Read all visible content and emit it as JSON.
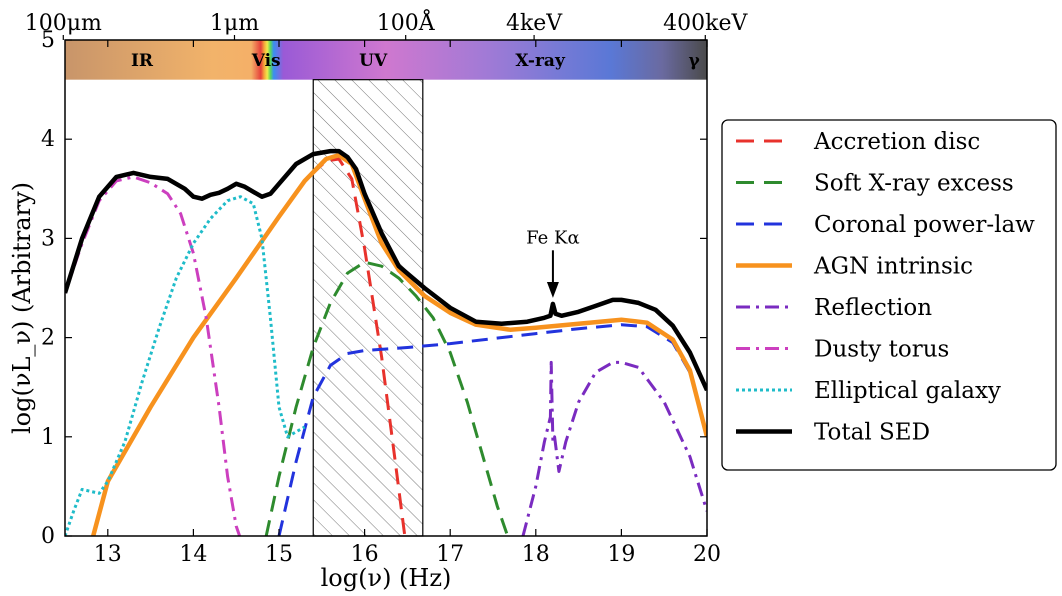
{
  "chart_data": {
    "type": "line",
    "xlabel": "log(ν) (Hz)",
    "ylabel": "log(νL_ν) (Arbitrary)",
    "xlim": [
      12.5,
      20
    ],
    "ylim": [
      0,
      5
    ],
    "xticks": [
      "13",
      "14",
      "15",
      "16",
      "17",
      "18",
      "19",
      "20"
    ],
    "yticks": [
      "0",
      "1",
      "2",
      "3",
      "4",
      "5"
    ],
    "top_axis": [
      {
        "label": "100μm",
        "x": 12.48
      },
      {
        "label": "1μm",
        "x": 14.48
      },
      {
        "label": "100Å",
        "x": 16.48
      },
      {
        "label": "4keV",
        "x": 17.98
      },
      {
        "label": "400keV",
        "x": 19.98
      }
    ],
    "bands": [
      {
        "label": "IR",
        "x": 13.4
      },
      {
        "label": "Vis",
        "x": 14.85
      },
      {
        "label": "UV",
        "x": 16.1
      },
      {
        "label": "X-ray",
        "x": 18.05
      },
      {
        "label": "γ",
        "x": 19.85
      }
    ],
    "band_ylim": [
      4.6,
      5.0
    ],
    "hatched_region": [
      15.4,
      16.68
    ],
    "annotation": {
      "text": "Fe Kα",
      "x": 18.2,
      "y": 2.35
    },
    "legend_position": "right",
    "series": [
      {
        "name": "Accretion disc",
        "color": "#e8322c",
        "style": "dashed",
        "x": [
          12.83,
          13.0,
          13.5,
          14.0,
          14.5,
          15.0,
          15.3,
          15.55,
          15.7,
          15.85,
          16.0,
          16.2,
          16.35,
          16.47
        ],
        "y": [
          0.0,
          0.55,
          1.3,
          2.0,
          2.6,
          3.22,
          3.58,
          3.78,
          3.8,
          3.6,
          2.9,
          1.8,
          0.8,
          0.0
        ]
      },
      {
        "name": "Soft X-ray excess",
        "color": "#2e8b2e",
        "style": "dashed",
        "x": [
          14.85,
          15.0,
          15.2,
          15.4,
          15.6,
          15.8,
          16.0,
          16.2,
          16.4,
          16.6,
          16.8,
          17.0,
          17.2,
          17.4,
          17.55,
          17.67
        ],
        "y": [
          0.0,
          0.6,
          1.3,
          1.9,
          2.35,
          2.65,
          2.76,
          2.72,
          2.6,
          2.42,
          2.2,
          1.85,
          1.35,
          0.75,
          0.3,
          0.0
        ]
      },
      {
        "name": "Coronal power-law",
        "color": "#2233dd",
        "style": "dashed",
        "x": [
          15.0,
          15.2,
          15.4,
          15.6,
          15.8,
          16.0,
          16.5,
          17.0,
          17.5,
          18.0,
          18.5,
          19.0,
          19.3,
          19.6,
          19.8,
          20.0
        ],
        "y": [
          0.0,
          0.75,
          1.4,
          1.72,
          1.84,
          1.87,
          1.9,
          1.94,
          1.99,
          2.04,
          2.09,
          2.13,
          2.11,
          1.95,
          1.65,
          1.0
        ]
      },
      {
        "name": "AGN intrinsic",
        "color": "#f7921e",
        "style": "solid",
        "x": [
          12.83,
          13.0,
          13.5,
          14.0,
          14.5,
          15.0,
          15.3,
          15.55,
          15.7,
          15.85,
          16.0,
          16.2,
          16.4,
          16.7,
          17.0,
          17.3,
          17.7,
          18.0,
          18.5,
          19.0,
          19.3,
          19.6,
          19.8,
          20.0
        ],
        "y": [
          0.0,
          0.55,
          1.3,
          2.0,
          2.6,
          3.22,
          3.58,
          3.8,
          3.84,
          3.75,
          3.4,
          2.95,
          2.68,
          2.42,
          2.25,
          2.13,
          2.08,
          2.1,
          2.14,
          2.18,
          2.15,
          1.98,
          1.67,
          1.0
        ]
      },
      {
        "name": "Reflection",
        "color": "#7a2bc0",
        "style": "dashdot",
        "x": [
          17.85,
          18.0,
          18.1,
          18.17,
          18.18,
          18.2,
          18.22,
          18.27,
          18.35,
          18.5,
          18.7,
          18.9,
          19.0,
          19.2,
          19.5,
          19.8,
          20.0
        ],
        "y": [
          0.0,
          0.5,
          0.95,
          1.2,
          1.75,
          0.95,
          1.0,
          0.65,
          0.95,
          1.35,
          1.65,
          1.75,
          1.75,
          1.7,
          1.35,
          0.8,
          0.25
        ]
      },
      {
        "name": "Dusty torus",
        "color": "#cc3fbf",
        "style": "dashdot",
        "x": [
          12.5,
          12.7,
          12.9,
          13.1,
          13.3,
          13.5,
          13.7,
          13.85,
          14.0,
          14.15,
          14.3,
          14.4,
          14.5,
          14.54
        ],
        "y": [
          2.45,
          2.95,
          3.38,
          3.58,
          3.62,
          3.56,
          3.45,
          3.25,
          2.85,
          2.2,
          1.3,
          0.6,
          0.1,
          0.0
        ]
      },
      {
        "name": "Elliptical galaxy",
        "color": "#1fbcc9",
        "style": "dotted",
        "x": [
          12.5,
          12.6,
          12.7,
          12.8,
          12.9,
          13.0,
          13.2,
          13.4,
          13.6,
          13.8,
          14.0,
          14.2,
          14.4,
          14.55,
          14.7,
          14.8,
          14.9,
          15.0,
          15.1,
          15.2,
          15.3
        ],
        "y": [
          0.0,
          0.25,
          0.47,
          0.45,
          0.43,
          0.55,
          0.95,
          1.55,
          2.1,
          2.6,
          2.95,
          3.2,
          3.38,
          3.42,
          3.35,
          3.0,
          2.2,
          1.3,
          1.0,
          1.05,
          1.1
        ]
      },
      {
        "name": "Total SED",
        "color": "#000000",
        "style": "solid",
        "x": [
          12.5,
          12.7,
          12.9,
          13.1,
          13.3,
          13.5,
          13.7,
          13.9,
          14.0,
          14.1,
          14.2,
          14.3,
          14.4,
          14.5,
          14.6,
          14.7,
          14.8,
          14.9,
          15.0,
          15.2,
          15.4,
          15.6,
          15.7,
          15.8,
          15.9,
          16.0,
          16.2,
          16.4,
          16.7,
          17.0,
          17.3,
          17.6,
          17.9,
          18.1,
          18.17,
          18.2,
          18.23,
          18.3,
          18.5,
          18.7,
          18.9,
          19.0,
          19.2,
          19.4,
          19.6,
          19.8,
          20.0
        ],
        "y": [
          2.45,
          3.0,
          3.42,
          3.62,
          3.66,
          3.62,
          3.6,
          3.5,
          3.42,
          3.4,
          3.44,
          3.46,
          3.5,
          3.55,
          3.52,
          3.47,
          3.42,
          3.45,
          3.55,
          3.75,
          3.85,
          3.88,
          3.88,
          3.82,
          3.7,
          3.45,
          3.05,
          2.72,
          2.5,
          2.3,
          2.16,
          2.14,
          2.16,
          2.2,
          2.22,
          2.34,
          2.24,
          2.22,
          2.26,
          2.32,
          2.38,
          2.38,
          2.35,
          2.28,
          2.12,
          1.85,
          1.47
        ]
      }
    ]
  }
}
